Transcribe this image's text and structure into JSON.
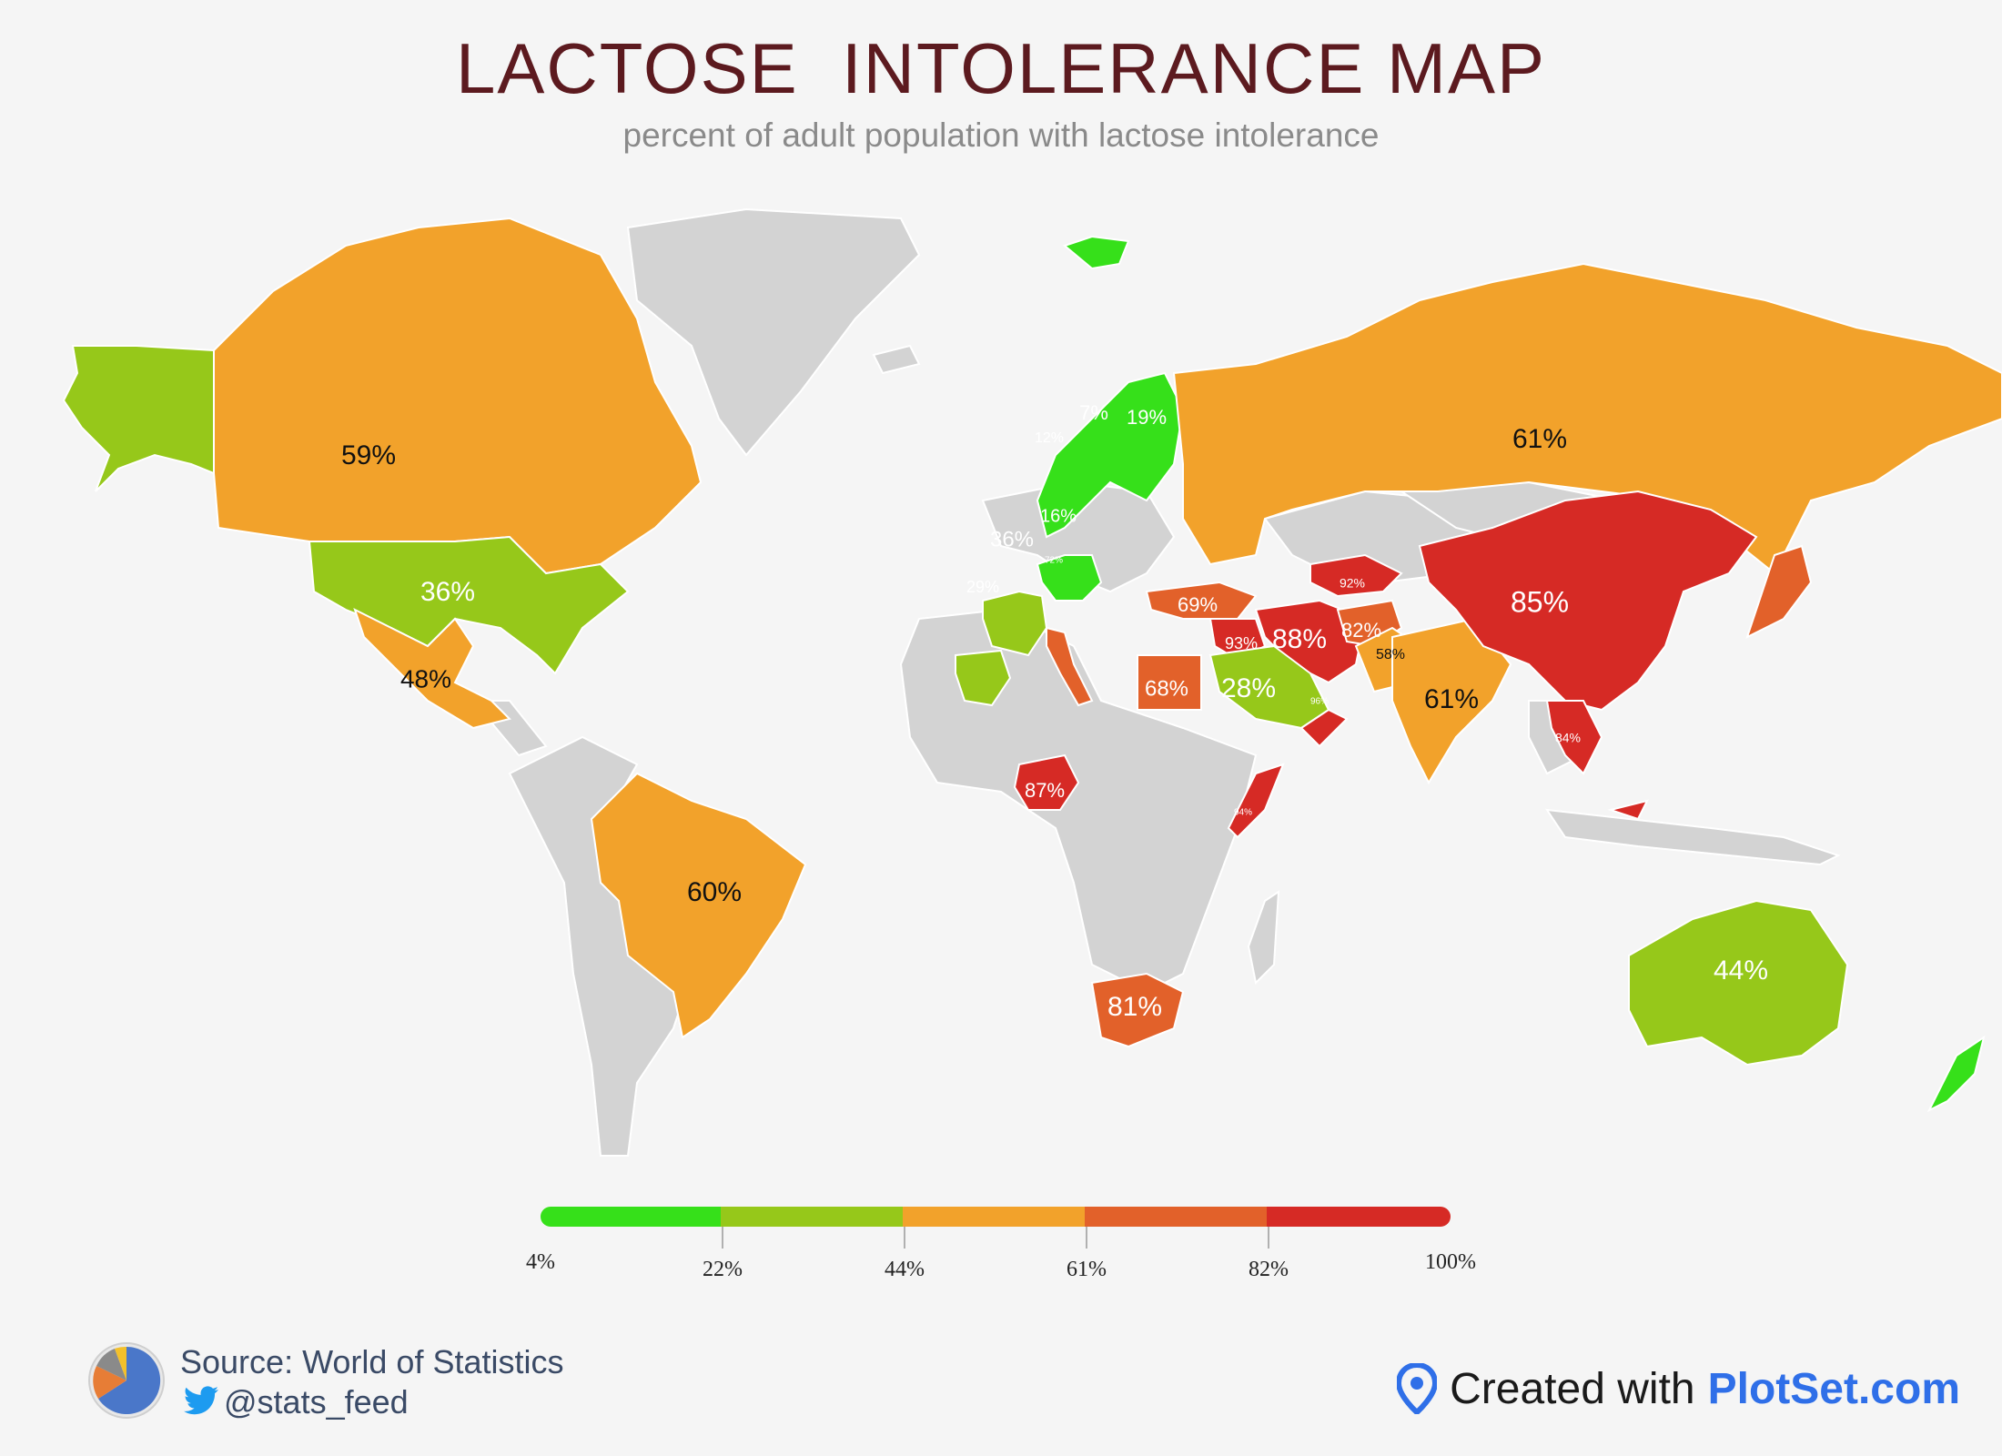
{
  "title": "LACTOSE  INTOLERANCE MAP",
  "subtitle": "percent of adult population with lactose intolerance",
  "colors": {
    "background": "#f5f5f5",
    "no_data": "#d3d3d3",
    "title": "#5c1a1f",
    "band_1": "#36e01a",
    "band_2": "#96c81a",
    "band_3": "#f2a22b",
    "band_4": "#e2612a",
    "band_5": "#d62a25",
    "brand": "#2f6fe8"
  },
  "legend": {
    "type": "color-scale",
    "ticks": [
      "4%",
      "22%",
      "44%",
      "61%",
      "82%",
      "100%"
    ],
    "stops": [
      4,
      22,
      44,
      61,
      82,
      100
    ]
  },
  "chart_data": {
    "type": "choropleth",
    "title": "LACTOSE  INTOLERANCE MAP",
    "subtitle": "percent of adult population with lactose intolerance",
    "scale_min": 4,
    "scale_max": 100,
    "regions": [
      {
        "name": "Canada",
        "value": 59,
        "label": "59%"
      },
      {
        "name": "United States",
        "value": 36,
        "label": "36%"
      },
      {
        "name": "Mexico",
        "value": 48,
        "label": "48%"
      },
      {
        "name": "Brazil",
        "value": 60,
        "label": "60%"
      },
      {
        "name": "Russia",
        "value": 61,
        "label": "61%"
      },
      {
        "name": "China",
        "value": 85,
        "label": "85%"
      },
      {
        "name": "India",
        "value": 61,
        "label": "61%"
      },
      {
        "name": "Australia",
        "value": 44,
        "label": "44%"
      },
      {
        "name": "Saudi Arabia",
        "value": 28,
        "label": "28%"
      },
      {
        "name": "Egypt",
        "value": 68,
        "label": "68%"
      },
      {
        "name": "Nigeria",
        "value": 87,
        "label": "87%"
      },
      {
        "name": "South Africa",
        "value": 81,
        "label": "81%"
      },
      {
        "name": "Iran",
        "value": 88,
        "label": "88%"
      },
      {
        "name": "Afghanistan",
        "value": 82,
        "label": "82%"
      },
      {
        "name": "Pakistan",
        "value": 58,
        "label": "58%"
      },
      {
        "name": "Turkey",
        "value": 69,
        "label": "69%"
      },
      {
        "name": "Iraq",
        "value": 93,
        "label": "93%"
      },
      {
        "name": "Sweden",
        "value": 7,
        "label": "7%"
      },
      {
        "name": "Finland",
        "value": 19,
        "label": "19%"
      },
      {
        "name": "Norway",
        "value": 12,
        "label": "12%"
      },
      {
        "name": "Germany",
        "value": 16,
        "label": "16%"
      },
      {
        "name": "France",
        "value": 36,
        "label": "36%"
      },
      {
        "name": "Spain",
        "value": 29,
        "label": "29%"
      },
      {
        "name": "Italy",
        "value": 72,
        "label": "72%"
      },
      {
        "name": "Kazakhstan",
        "value": 92,
        "label": "92%"
      },
      {
        "name": "Vietnam",
        "value": 84,
        "label": "84%"
      },
      {
        "name": "Somalia",
        "value": 94,
        "label": "94%"
      },
      {
        "name": "Oman",
        "value": 96,
        "label": "96%"
      }
    ]
  },
  "footer": {
    "source": "Source: World of Statistics",
    "handle": "@stats_feed",
    "created_prefix": "Created with",
    "created_brand": "PlotSet.com"
  }
}
